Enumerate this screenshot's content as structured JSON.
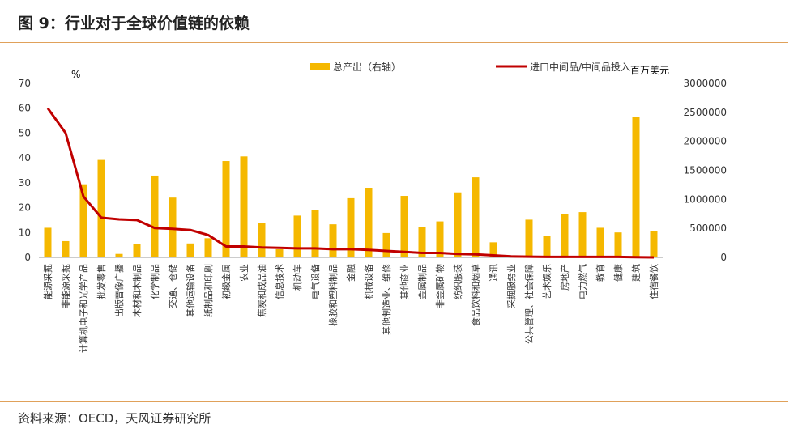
{
  "page": {
    "title": "图 9：行业对于全球价值链的依赖",
    "source": "资料来源：OECD，天风证券研究所"
  },
  "colors": {
    "bar": "#f5b800",
    "line": "#c00000",
    "axis": "#999999",
    "text": "#333333",
    "rule": "#e0a15a"
  },
  "chart_data": {
    "type": "bar+line",
    "title": "",
    "left_axis": {
      "unit": "%",
      "min": 0,
      "max": 70,
      "ticks": [
        0,
        10,
        20,
        30,
        40,
        50,
        60,
        70
      ]
    },
    "right_axis": {
      "unit": "百万美元",
      "min": 0,
      "max": 3000000,
      "ticks": [
        0,
        500000,
        1000000,
        1500000,
        2000000,
        2500000,
        3000000
      ]
    },
    "legend": {
      "placement": "top",
      "bar_label": "总产出（右轴）",
      "line_label": "进口中间品/中间品投入"
    },
    "categories": [
      "能源采掘",
      "非能源采掘",
      "计算机电子和光学产品",
      "批发零售",
      "出版音像广播",
      "木材和木制品",
      "化学制品",
      "交通、仓储",
      "其他运输设备",
      "纸制品和印刷",
      "初级金属",
      "农业",
      "焦炭和成品油",
      "信息技术",
      "机动车",
      "电气设备",
      "橡胶和塑料制品",
      "金融",
      "机械设备",
      "其他制造业、维修",
      "其他商业",
      "金属制品",
      "非金属矿物",
      "纺织服装",
      "食品饮料和烟草",
      "通讯",
      "采掘服务业",
      "公共管理、社会保障",
      "艺术娱乐",
      "房地产",
      "电力燃气",
      "教育",
      "健康",
      "建筑",
      "住宿餐饮"
    ],
    "series": [
      {
        "name": "总产出（右轴）",
        "axis": "right",
        "type": "bar",
        "values": [
          510000,
          280000,
          1260000,
          1680000,
          60000,
          230000,
          1410000,
          1030000,
          240000,
          330000,
          1660000,
          1740000,
          600000,
          140000,
          720000,
          810000,
          570000,
          1020000,
          1200000,
          420000,
          1060000,
          520000,
          620000,
          1120000,
          1380000,
          260000,
          20000,
          650000,
          370000,
          750000,
          780000,
          510000,
          430000,
          2420000,
          450000
        ]
      },
      {
        "name": "进口中间品/中间品投入",
        "axis": "left",
        "type": "line",
        "values": [
          60,
          50,
          24.5,
          16,
          15.3,
          15,
          11.8,
          11.5,
          11,
          9,
          4.4,
          4.4,
          4,
          3.8,
          3.6,
          3.6,
          3.3,
          3.3,
          3,
          2.6,
          2.2,
          1.8,
          1.8,
          1.4,
          1.2,
          0.8,
          0.4,
          0.3,
          0.2,
          0.2,
          0.2,
          0.2,
          0.2,
          0.1,
          0
        ]
      }
    ]
  }
}
